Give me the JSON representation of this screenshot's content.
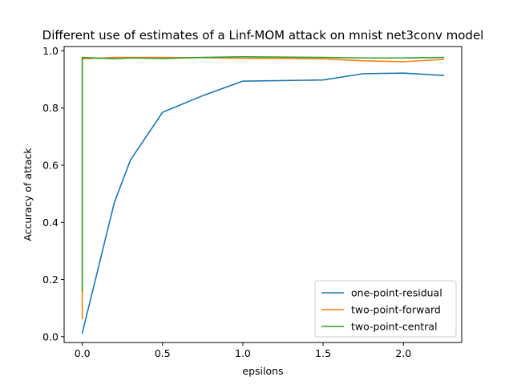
{
  "chart_data": {
    "type": "line",
    "title": "Different use of estimates of a Linf-MOM attack on mnist net3conv model",
    "xlabel": "epsilons",
    "ylabel": "Accuracy of attack",
    "xlim": [
      -0.113,
      2.363
    ],
    "ylim": [
      -0.02,
      1.015
    ],
    "xticks": [
      0.0,
      0.5,
      1.0,
      1.5,
      2.0
    ],
    "xtick_labels": [
      "0.0",
      "0.5",
      "1.0",
      "1.5",
      "2.0"
    ],
    "yticks": [
      0.0,
      0.2,
      0.4,
      0.6,
      0.8,
      1.0
    ],
    "ytick_labels": [
      "0.0",
      "0.2",
      "0.4",
      "0.6",
      "0.8",
      "1.0"
    ],
    "grid": false,
    "legend_position": "lower-right",
    "series": [
      {
        "name": "one-point-residual",
        "color": "#1f77b4",
        "x": [
          0.0,
          0.2,
          0.3,
          0.5,
          0.75,
          1.0,
          1.5,
          1.75,
          2.0,
          2.25
        ],
        "y": [
          0.013,
          0.47,
          0.618,
          0.785,
          0.843,
          0.894,
          0.898,
          0.92,
          0.922,
          0.914
        ]
      },
      {
        "name": "two-point-forward",
        "color": "#ff7f0e",
        "x": [
          0.0,
          0.0,
          0.2,
          0.3,
          0.5,
          0.75,
          1.0,
          1.5,
          1.75,
          2.0,
          2.25
        ],
        "y": [
          0.063,
          0.972,
          0.977,
          0.977,
          0.977,
          0.976,
          0.974,
          0.972,
          0.965,
          0.962,
          0.97
        ]
      },
      {
        "name": "two-point-central",
        "color": "#2ca02c",
        "x": [
          0.0,
          0.0,
          0.2,
          0.3,
          0.5,
          0.75,
          1.0,
          1.5,
          1.75,
          2.0,
          2.25
        ],
        "y": [
          0.16,
          0.977,
          0.972,
          0.975,
          0.973,
          0.977,
          0.979,
          0.977,
          0.975,
          0.975,
          0.977
        ]
      }
    ]
  }
}
